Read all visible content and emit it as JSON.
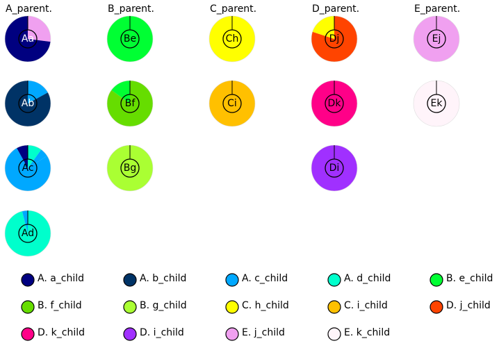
{
  "chart_data": {
    "type": "pie",
    "parents": [
      {
        "title": "A_parent.",
        "pies": [
          {
            "label": "Aa",
            "label_color": "#ffffff",
            "slices": [
              {
                "value": 0.27,
                "color": "#f0a0f0"
              },
              {
                "value": 0.73,
                "color": "#000080"
              }
            ]
          },
          {
            "label": "Ab",
            "label_color": "#ffffff",
            "slices": [
              {
                "value": 0.17,
                "color": "#00a8ff"
              },
              {
                "value": 0.83,
                "color": "#003366"
              }
            ]
          },
          {
            "label": "Ac",
            "label_color": "#000000",
            "slices": [
              {
                "value": 0.1,
                "color": "#00ffcc"
              },
              {
                "value": 0.06,
                "color": "#00a8ff"
              },
              {
                "value": 0.76,
                "color": "#00a8ff"
              },
              {
                "value": 0.08,
                "color": "#000080"
              }
            ]
          },
          {
            "label": "Ad",
            "label_color": "#000000",
            "slices": [
              {
                "value": 0.96,
                "color": "#00ffcc"
              },
              {
                "value": 0.04,
                "color": "#00a8ff"
              }
            ]
          }
        ]
      },
      {
        "title": "B_parent.",
        "pies": [
          {
            "label": "Be",
            "label_color": "#000000",
            "slices": [
              {
                "value": 1.0,
                "color": "#00ff33"
              }
            ]
          },
          {
            "label": "Bf",
            "label_color": "#000000",
            "slices": [
              {
                "value": 0.85,
                "color": "#66dd00"
              },
              {
                "value": 0.15,
                "color": "#00ff33"
              }
            ]
          },
          {
            "label": "Bg",
            "label_color": "#000000",
            "slices": [
              {
                "value": 1.0,
                "color": "#aaff33"
              }
            ]
          }
        ]
      },
      {
        "title": "C_parent.",
        "pies": [
          {
            "label": "Ch",
            "label_color": "#000000",
            "slices": [
              {
                "value": 1.0,
                "color": "#ffff00"
              }
            ]
          },
          {
            "label": "Ci",
            "label_color": "#000000",
            "slices": [
              {
                "value": 1.0,
                "color": "#ffc000"
              }
            ]
          }
        ]
      },
      {
        "title": "D_parent.",
        "pies": [
          {
            "label": "Dj",
            "label_color": "#000000",
            "slices": [
              {
                "value": 0.8,
                "color": "#ff4400"
              },
              {
                "value": 0.2,
                "color": "#ffff00"
              }
            ]
          },
          {
            "label": "Dk",
            "label_color": "#000000",
            "slices": [
              {
                "value": 1.0,
                "color": "#ff0088"
              }
            ]
          },
          {
            "label": "Di",
            "label_color": "#000000",
            "slices": [
              {
                "value": 1.0,
                "color": "#a030ff"
              }
            ]
          }
        ]
      },
      {
        "title": "E_parent.",
        "pies": [
          {
            "label": "Ej",
            "label_color": "#000000",
            "slices": [
              {
                "value": 1.0,
                "color": "#f0a0f0"
              }
            ]
          },
          {
            "label": "Ek",
            "label_color": "#000000",
            "slices": [
              {
                "value": 1.0,
                "color": "#fff4fa"
              }
            ]
          }
        ]
      }
    ],
    "legend": [
      {
        "label": "A. a_child",
        "color": "#000080"
      },
      {
        "label": "A. b_child",
        "color": "#003366"
      },
      {
        "label": "A. c_child",
        "color": "#00a8ff"
      },
      {
        "label": "A. d_child",
        "color": "#00ffcc"
      },
      {
        "label": "B. e_child",
        "color": "#00ff33"
      },
      {
        "label": "B. f_child",
        "color": "#66dd00"
      },
      {
        "label": "B. g_child",
        "color": "#aaff33"
      },
      {
        "label": "C. h_child",
        "color": "#ffff00"
      },
      {
        "label": "C. i_child",
        "color": "#ffc000"
      },
      {
        "label": "D. j_child",
        "color": "#ff4400"
      },
      {
        "label": "D. k_child",
        "color": "#ff0088"
      },
      {
        "label": "D. i_child",
        "color": "#a030ff"
      },
      {
        "label": "E. j_child",
        "color": "#f0a0f0"
      },
      {
        "label": "E. k_child",
        "color": "#fff4fa"
      }
    ],
    "legend_placement": "bottom"
  }
}
